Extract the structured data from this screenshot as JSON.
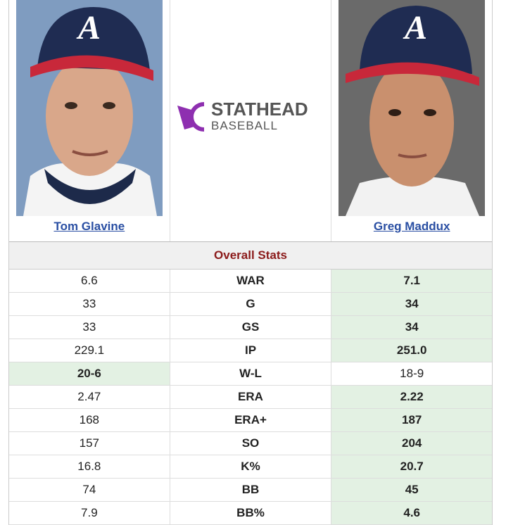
{
  "players": {
    "left": {
      "name": "Tom Glavine"
    },
    "right": {
      "name": "Greg Maddux"
    }
  },
  "logo": {
    "brand": "STATHEAD",
    "sub": "BASEBALL"
  },
  "stats": {
    "title": "Overall Stats",
    "rows": [
      {
        "left": "6.6",
        "stat": "WAR",
        "right": "7.1",
        "highlight": "right"
      },
      {
        "left": "33",
        "stat": "G",
        "right": "34",
        "highlight": "right"
      },
      {
        "left": "33",
        "stat": "GS",
        "right": "34",
        "highlight": "right"
      },
      {
        "left": "229.1",
        "stat": "IP",
        "right": "251.0",
        "highlight": "right"
      },
      {
        "left": "20-6",
        "stat": "W-L",
        "right": "18-9",
        "highlight": "left"
      },
      {
        "left": "2.47",
        "stat": "ERA",
        "right": "2.22",
        "highlight": "right"
      },
      {
        "left": "168",
        "stat": "ERA+",
        "right": "187",
        "highlight": "right"
      },
      {
        "left": "157",
        "stat": "SO",
        "right": "204",
        "highlight": "right"
      },
      {
        "left": "16.8",
        "stat": "K%",
        "right": "20.7",
        "highlight": "right"
      },
      {
        "left": "74",
        "stat": "BB",
        "right": "45",
        "highlight": "right"
      },
      {
        "left": "7.9",
        "stat": "BB%",
        "right": "4.6",
        "highlight": "right"
      }
    ]
  }
}
